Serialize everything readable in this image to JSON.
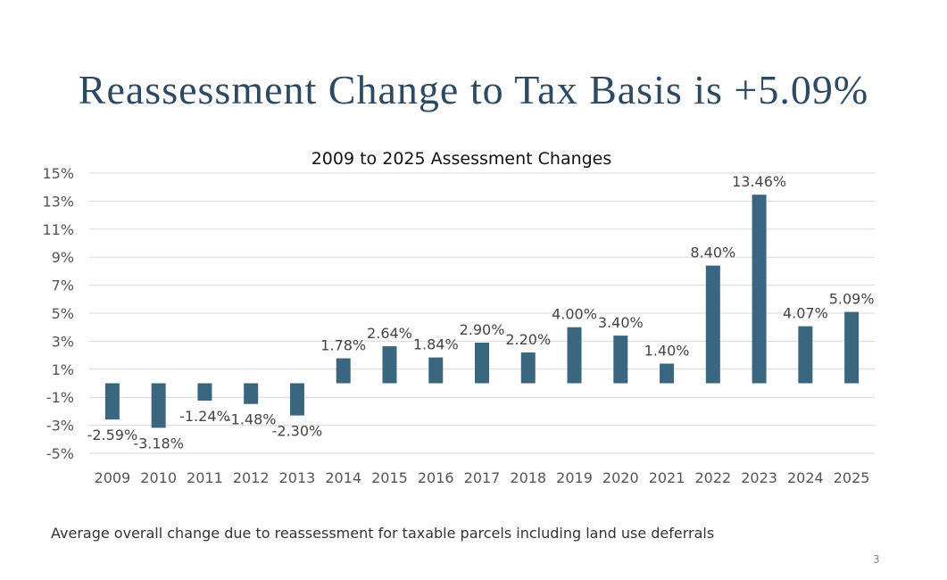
{
  "slide": {
    "title": "Reassessment Change to Tax Basis is +5.09%",
    "footnote": "Average overall change due to reassessment for taxable parcels including land use deferrals",
    "page_number": "3"
  },
  "chart_data": {
    "type": "bar",
    "title": "2009 to 2025 Assessment Changes",
    "xlabel": "",
    "ylabel": "",
    "categories": [
      "2009",
      "2010",
      "2011",
      "2012",
      "2013",
      "2014",
      "2015",
      "2016",
      "2017",
      "2018",
      "2019",
      "2020",
      "2021",
      "2022",
      "2023",
      "2024",
      "2025"
    ],
    "values": [
      -2.59,
      -3.18,
      -1.24,
      -1.48,
      -2.3,
      1.78,
      2.64,
      1.84,
      2.9,
      2.2,
      4.0,
      3.4,
      1.4,
      8.4,
      13.46,
      4.07,
      5.09
    ],
    "data_labels": [
      "-2.59%",
      "-3.18%",
      "-1.24%",
      "-1.48%",
      "-2.30%",
      "1.78%",
      "2.64%",
      "1.84%",
      "2.90%",
      "2.20%",
      "4.00%",
      "3.40%",
      "1.40%",
      "8.40%",
      "13.46%",
      "4.07%",
      "5.09%"
    ],
    "yticks": [
      15,
      13,
      11,
      9,
      7,
      5,
      3,
      1,
      -1,
      -3,
      -5
    ],
    "ytick_labels": [
      "15%",
      "13%",
      "11%",
      "9%",
      "7%",
      "5%",
      "3%",
      "1%",
      "-1%",
      "-3%",
      "-5%"
    ],
    "ylim": [
      -5,
      15
    ],
    "grid": true,
    "bar_color": "#3b6680",
    "grid_color": "#d9d9d9"
  }
}
